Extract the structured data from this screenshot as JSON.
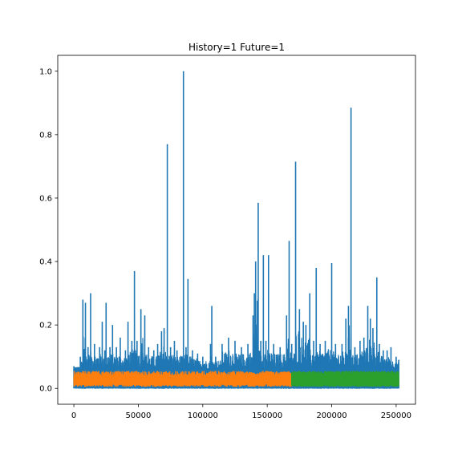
{
  "chart_data": {
    "type": "line",
    "title": "History=1 Future=1",
    "xlabel": "",
    "ylabel": "",
    "xlim": [
      -12500,
      265000
    ],
    "ylim": [
      -0.05,
      1.05
    ],
    "xticks": [
      0,
      50000,
      100000,
      150000,
      200000,
      250000
    ],
    "xtick_labels": [
      "0",
      "50000",
      "100000",
      "150000",
      "200000",
      "250000"
    ],
    "yticks": [
      0.0,
      0.2,
      0.4,
      0.6,
      0.8,
      1.0
    ],
    "ytick_labels": [
      "0.0",
      "0.2",
      "0.4",
      "0.6",
      "0.8",
      "1.0"
    ],
    "grid": false,
    "legend": "none",
    "series": [
      {
        "color": "#1f77b4",
        "x_range": [
          0,
          252000
        ],
        "baseline_band": [
          0.0,
          0.06
        ],
        "upper_envelope": [
          [
            0,
            0.07
          ],
          [
            5000,
            0.1
          ],
          [
            7000,
            0.28
          ],
          [
            9000,
            0.27
          ],
          [
            11000,
            0.13
          ],
          [
            13000,
            0.3
          ],
          [
            16000,
            0.14
          ],
          [
            20000,
            0.13
          ],
          [
            22000,
            0.21
          ],
          [
            24000,
            0.12
          ],
          [
            25000,
            0.27
          ],
          [
            28000,
            0.13
          ],
          [
            30000,
            0.2
          ],
          [
            33000,
            0.13
          ],
          [
            36000,
            0.16
          ],
          [
            40000,
            0.12
          ],
          [
            42000,
            0.21
          ],
          [
            45000,
            0.15
          ],
          [
            47000,
            0.37
          ],
          [
            49000,
            0.15
          ],
          [
            52000,
            0.25
          ],
          [
            55000,
            0.23
          ],
          [
            58000,
            0.13
          ],
          [
            62000,
            0.12
          ],
          [
            65000,
            0.14
          ],
          [
            68000,
            0.18
          ],
          [
            70000,
            0.19
          ],
          [
            72500,
            0.77
          ],
          [
            75000,
            0.13
          ],
          [
            78000,
            0.15
          ],
          [
            80000,
            0.12
          ],
          [
            85000,
            1.0
          ],
          [
            87000,
            0.13
          ],
          [
            88500,
            0.345
          ],
          [
            92000,
            0.12
          ],
          [
            96000,
            0.11
          ],
          [
            100000,
            0.1
          ],
          [
            106000,
            0.14
          ],
          [
            107000,
            0.26
          ],
          [
            110000,
            0.1
          ],
          [
            115000,
            0.14
          ],
          [
            120000,
            0.16
          ],
          [
            125000,
            0.15
          ],
          [
            130000,
            0.13
          ],
          [
            135000,
            0.14
          ],
          [
            139000,
            0.23
          ],
          [
            140000,
            0.3
          ],
          [
            141000,
            0.4
          ],
          [
            143000,
            0.585
          ],
          [
            145000,
            0.15
          ],
          [
            147000,
            0.42
          ],
          [
            149000,
            0.15
          ],
          [
            151000,
            0.42
          ],
          [
            155000,
            0.14
          ],
          [
            160000,
            0.13
          ],
          [
            165000,
            0.23
          ],
          [
            167000,
            0.465
          ],
          [
            169000,
            0.14
          ],
          [
            172000,
            0.715
          ],
          [
            175000,
            0.25
          ],
          [
            178000,
            0.21
          ],
          [
            180000,
            0.2
          ],
          [
            183000,
            0.3
          ],
          [
            186000,
            0.15
          ],
          [
            188000,
            0.38
          ],
          [
            191000,
            0.14
          ],
          [
            195000,
            0.15
          ],
          [
            200000,
            0.395
          ],
          [
            203000,
            0.14
          ],
          [
            208000,
            0.14
          ],
          [
            211000,
            0.22
          ],
          [
            213000,
            0.26
          ],
          [
            215000,
            0.885
          ],
          [
            218000,
            0.13
          ],
          [
            222000,
            0.15
          ],
          [
            225000,
            0.16
          ],
          [
            228000,
            0.26
          ],
          [
            230000,
            0.22
          ],
          [
            232000,
            0.19
          ],
          [
            235000,
            0.35
          ],
          [
            237000,
            0.14
          ],
          [
            240000,
            0.12
          ],
          [
            243000,
            0.12
          ],
          [
            246000,
            0.13
          ],
          [
            250000,
            0.1
          ],
          [
            252000,
            0.09
          ]
        ]
      },
      {
        "color": "#ff7f0e",
        "x_range": [
          0,
          169000
        ],
        "band": [
          0.005,
          0.055
        ]
      },
      {
        "color": "#2ca02c",
        "x_range": [
          169000,
          252000
        ],
        "band": [
          0.005,
          0.055
        ]
      }
    ]
  }
}
